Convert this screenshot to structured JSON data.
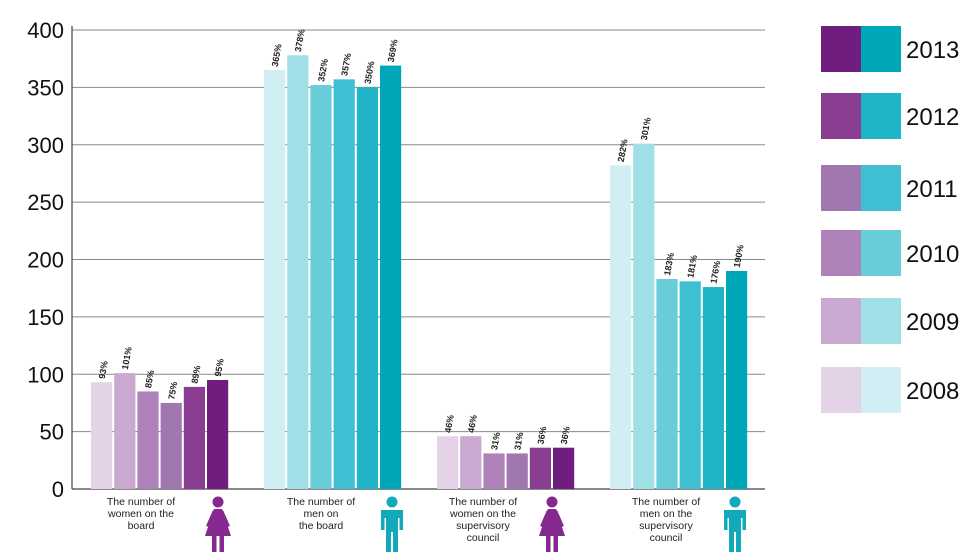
{
  "chart_data": {
    "type": "bar",
    "ylim": [
      0,
      400
    ],
    "yticks": [
      "0",
      "50",
      "100",
      "150",
      "200",
      "250",
      "300",
      "350",
      "400"
    ],
    "grid": true,
    "legend_position": "right",
    "categories": [
      {
        "label": [
          "The number of",
          "women on the",
          "board"
        ],
        "icon": "female-icon",
        "values": [
          93,
          101,
          85,
          75,
          89,
          95
        ],
        "labels": [
          "93%",
          "101%",
          "85%",
          "75%",
          "89%",
          "95%"
        ]
      },
      {
        "label": [
          "The number of",
          "men on",
          "the board"
        ],
        "icon": "male-icon",
        "values": [
          365,
          378,
          352,
          357,
          350,
          369
        ],
        "labels": [
          "365%",
          "378%",
          "352%",
          "357%",
          "350%",
          "369%"
        ]
      },
      {
        "label": [
          "The number of",
          "women on the",
          "supervisory",
          "council"
        ],
        "icon": "female-icon",
        "values": [
          46,
          46,
          31,
          31,
          36,
          36
        ],
        "labels": [
          "46%",
          "46%",
          "31%",
          "31%",
          "36%",
          "36%"
        ]
      },
      {
        "label": [
          "The number of",
          "men on the",
          "supervisory",
          "council"
        ],
        "icon": "male-icon",
        "values": [
          282,
          301,
          183,
          181,
          176,
          190
        ],
        "labels": [
          "282%",
          "301%",
          "183%",
          "181%",
          "176%",
          "190%"
        ]
      }
    ],
    "series": [
      {
        "name": "2008",
        "female_color": "#e4d3e6",
        "male_color": "#d0eef3"
      },
      {
        "name": "2009",
        "female_color": "#c9a9d0",
        "male_color": "#a1dfe7"
      },
      {
        "name": "2010",
        "female_color": "#ae81b8",
        "male_color": "#69cdd9"
      },
      {
        "name": "2011",
        "female_color": "#a177b0",
        "male_color": "#3fc0d2"
      },
      {
        "name": "2012",
        "female_color": "#8a3e92",
        "male_color": "#20b4c9"
      },
      {
        "name": "2013",
        "female_color": "#6f1d7f",
        "male_color": "#00a7b8"
      }
    ]
  }
}
